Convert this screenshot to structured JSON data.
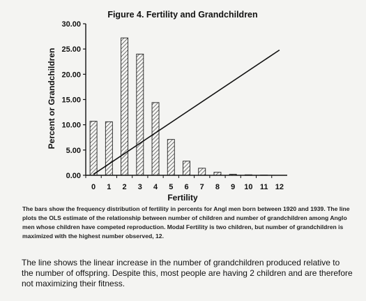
{
  "chart_data": {
    "type": "bar",
    "title": "Figure 4.  Fertility and Grandchildren",
    "xlabel": "Fertility",
    "ylabel": "Percent or Grandchildren",
    "categories": [
      "0",
      "1",
      "2",
      "3",
      "4",
      "5",
      "6",
      "7",
      "8",
      "9",
      "10",
      "11",
      "12"
    ],
    "series": [
      {
        "values": [
          10.7,
          10.6,
          27.2,
          24.0,
          14.4,
          7.1,
          2.8,
          1.4,
          0.6,
          0.2,
          0.1,
          0.05,
          0.0
        ]
      }
    ],
    "line": {
      "x": [
        0,
        12
      ],
      "y": [
        0.2,
        24.8
      ]
    },
    "ylim": [
      0,
      30
    ],
    "yticks": [
      "0.00",
      "5.00",
      "10.00",
      "15.00",
      "20.00",
      "25.00",
      "30.00"
    ],
    "grid": false,
    "legend": "none"
  },
  "caption": "The bars show the frequency distribution of fertility in percents for Angl  men born between 1920 and 1939.  The line plots the OLS estimate of the relationship between number of children and number of grandchildren among Anglo men whose children have competed reproduction.  Modal Fertility is two children, but number of grandchildren is maximized with the highest number observed, 12.",
  "note": "The line shows the linear increase in the number of grandchildren produced relative to the number of offspring.  Despite this, most people are having 2 children and are therefore not maximizing their fitness.",
  "colors": {
    "bar_fill": "#ffffff",
    "hatch": "#222222",
    "axis": "#111111",
    "line": "#111111"
  }
}
